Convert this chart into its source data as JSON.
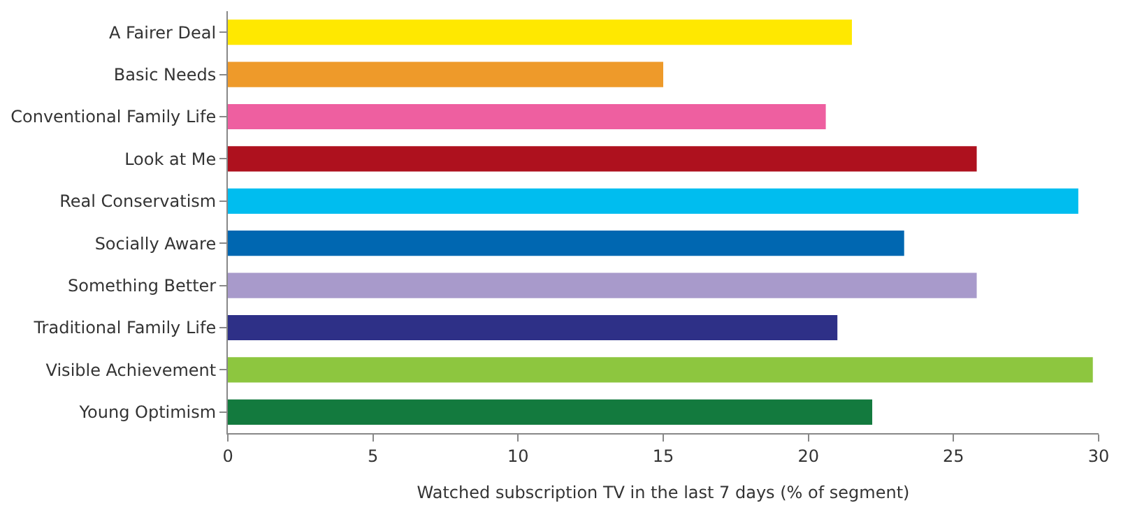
{
  "chart_data": {
    "type": "bar",
    "orientation": "horizontal",
    "xlabel": "Watched subscription TV in the last 7 days (% of segment)",
    "categories": [
      "A Fairer Deal",
      "Basic Needs",
      "Conventional Family Life",
      "Look at Me",
      "Real Conservatism",
      "Socially Aware",
      "Something Better",
      "Traditional Family Life",
      "Visible Achievement",
      "Young Optimism"
    ],
    "values": [
      21.5,
      15.0,
      20.6,
      25.8,
      29.3,
      23.3,
      25.8,
      21.0,
      29.8,
      22.2
    ],
    "colors": [
      "#ffe800",
      "#ee9a2a",
      "#ee5fa0",
      "#ae111e",
      "#00bdef",
      "#0067b1",
      "#a89acb",
      "#2e3087",
      "#8dc63f",
      "#137a3e"
    ],
    "xlim": [
      0,
      30
    ],
    "xticks": [
      0,
      5,
      10,
      15,
      20,
      25,
      30
    ]
  }
}
